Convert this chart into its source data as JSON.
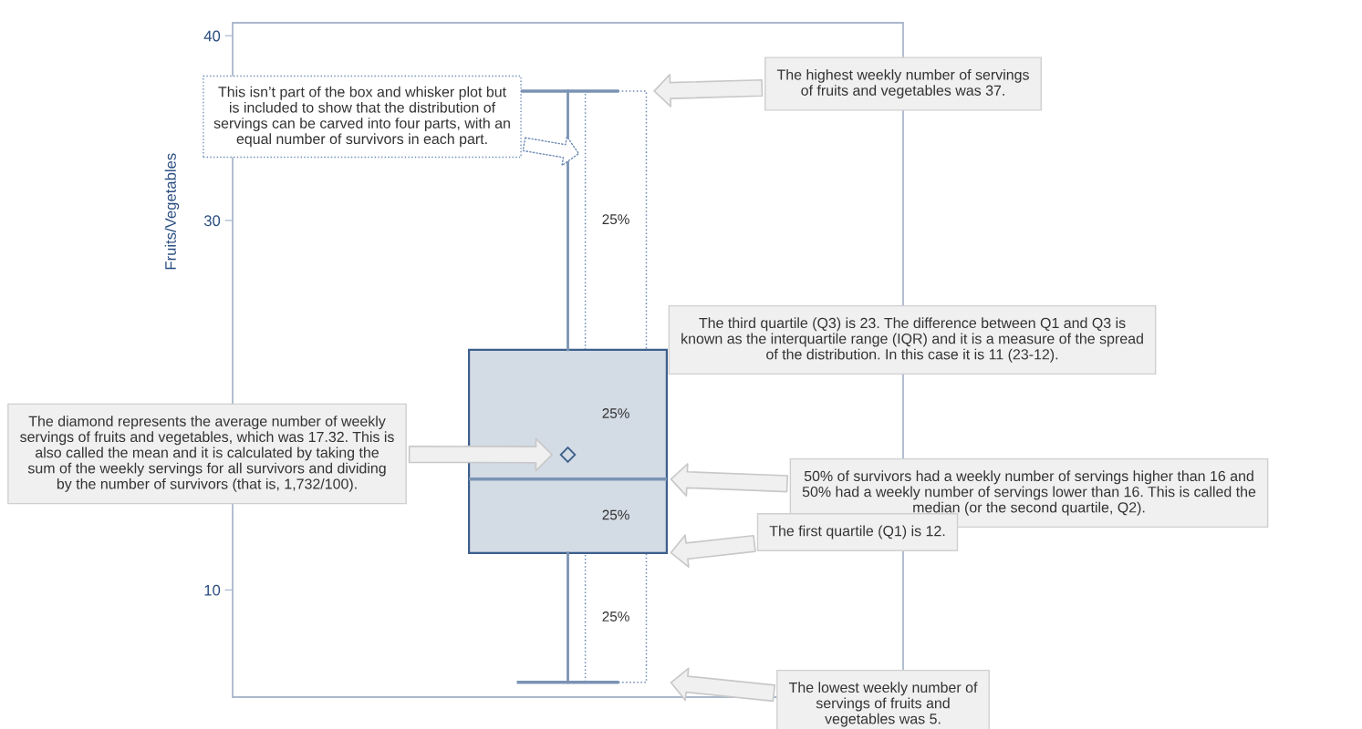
{
  "chart_data": {
    "type": "box",
    "ylabel": "Fruits/Vegetables",
    "categories": [
      null
    ],
    "boxes": [
      {
        "low": 5,
        "q1": 12,
        "median": 16,
        "q3": 23,
        "high": 37,
        "mean": 17.32
      }
    ],
    "color": "#d3dbe5",
    "ylim": [
      4.2,
      40.7
    ],
    "yticks": [
      10,
      30,
      40
    ],
    "tick_labels": "y",
    "grid": false,
    "marker": "diamond",
    "annotations": [
      "This isn’t part of the box and whisker plot but\nis included to show that the distribution of\nservings can be carved into four parts, with an\nequal number of survivors in each part.",
      "The highest weekly number of servings\nof fruits and vegetables was 37.",
      "The third quartile (Q3) is 23. The difference between Q1 and Q3 is\nknown as the interquartile range (IQR) and it is a measure of the spread\nof the distribution. In this case it is 11 (23-12).",
      "The diamond represents the average number of weekly\nservings of fruits and vegetables, which was 17.32. This is\nalso called the mean and it is calculated by taking the\nsum of the weekly servings for all survivors and dividing\nby the number of survivors (that is, 1,732/100).",
      "50% of survivors had a weekly number of servings higher than 16 and\n50% had a weekly number of servings lower than 16. This is called the\nmedian (or the second quartile, Q2).",
      "The first quartile (Q1) is 12.",
      "The lowest weekly number of\nservings of fruits and\nvegetables was 5.",
      "25%",
      "25%",
      "25%",
      "25%"
    ]
  }
}
